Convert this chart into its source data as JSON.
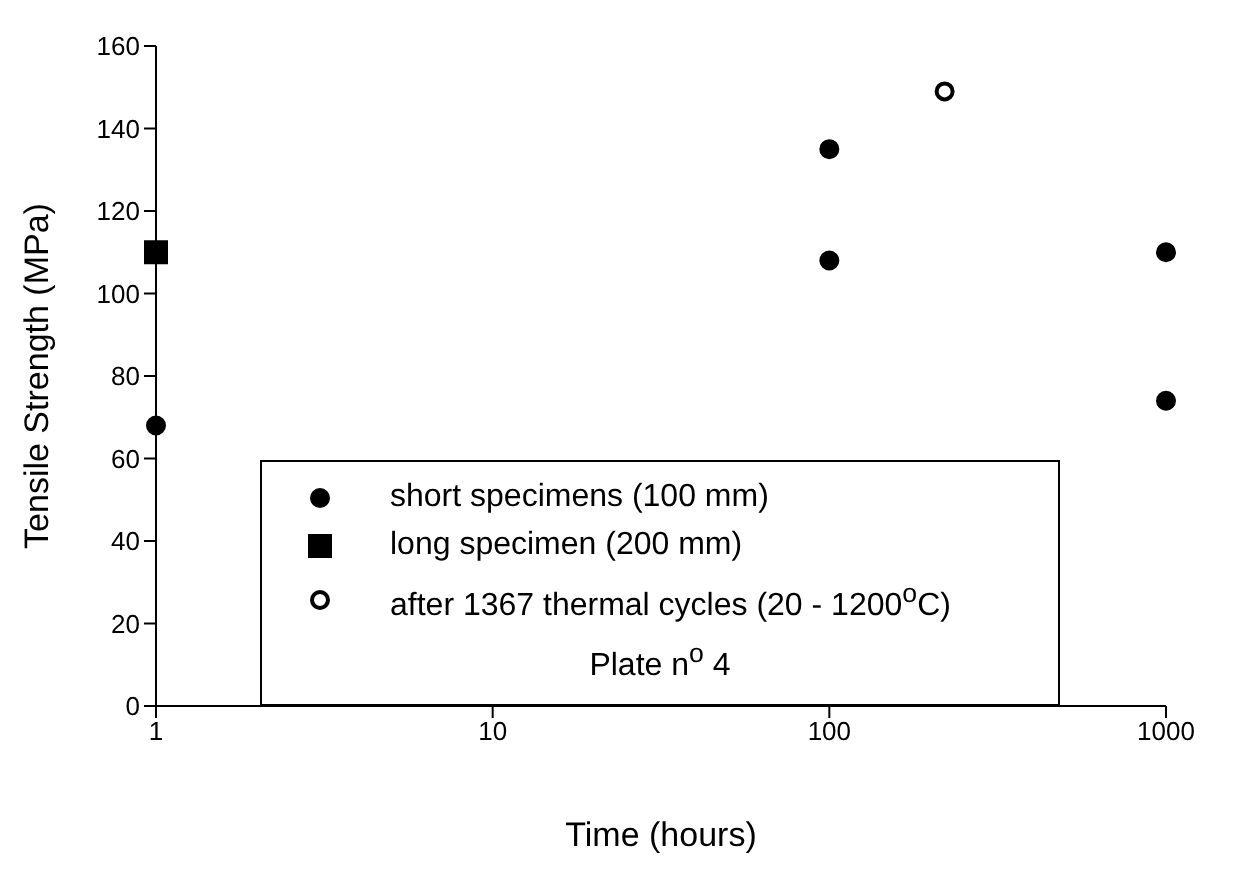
{
  "chart_data": {
    "type": "scatter",
    "xlabel": "Time (hours)",
    "ylabel": "Tensile Strength (MPa)",
    "log": "x",
    "xlim": [
      1,
      1000
    ],
    "xticks": [
      1,
      10,
      100,
      1000
    ],
    "ylim": [
      0,
      160
    ],
    "yticks": [
      0,
      20,
      40,
      60,
      80,
      100,
      120,
      140,
      160
    ],
    "grid": false,
    "legend": "bottom",
    "legend_title": "Plate n$^{o}$ 4",
    "series": [
      {
        "name": "short specimens (100 mm)",
        "color": "#000000",
        "marker": "circle",
        "x": [
          1,
          100,
          100,
          1000,
          1000
        ],
        "values": [
          68,
          135,
          108,
          110,
          74
        ]
      },
      {
        "name": "long specimen (200 mm)",
        "color": "#000000",
        "marker": "square",
        "x": [
          1
        ],
        "values": [
          110
        ]
      },
      {
        "name": "after 1367 thermal cycles (20 - 1200$^{o}$C)",
        "color": "#ffffff",
        "marker": "circle",
        "x": [
          220
        ],
        "values": [
          149
        ]
      }
    ]
  }
}
